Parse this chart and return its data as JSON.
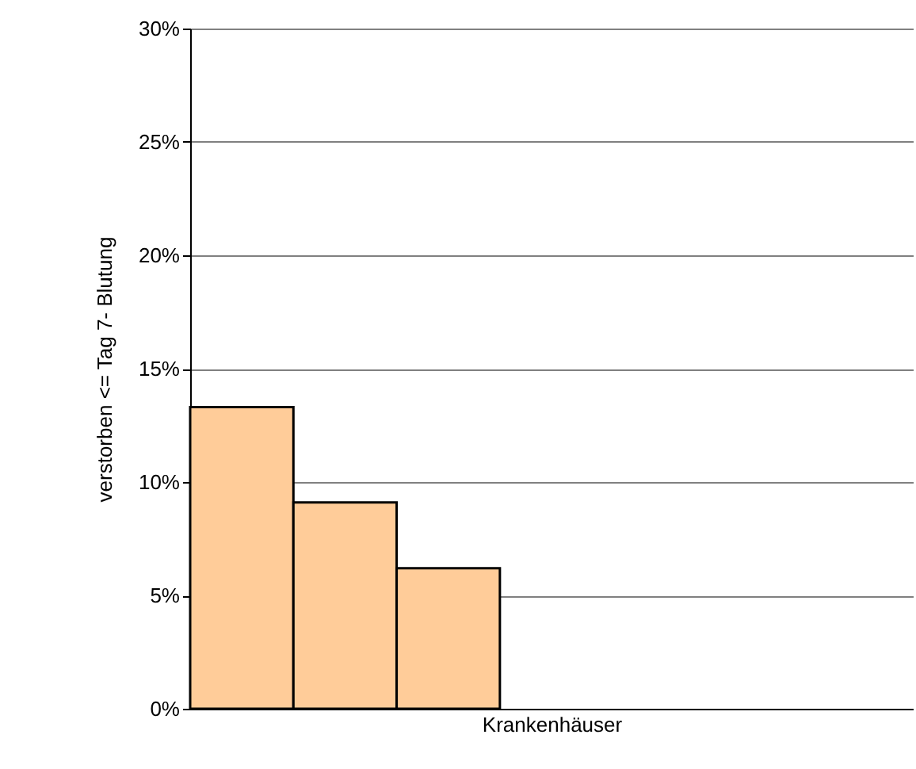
{
  "chart_data": {
    "type": "bar",
    "xlabel": "Krankenhäuser",
    "ylabel": "verstorben <= Tag 7- Blutung",
    "categories": [
      null,
      null,
      null,
      null,
      null,
      null,
      null
    ],
    "values": [
      13.3,
      9.1,
      6.2,
      null,
      null,
      null,
      null
    ],
    "color": "#ffcc99",
    "ylim": [
      0,
      30
    ],
    "yticks": [
      {
        "value": 0,
        "label": "0%"
      },
      {
        "value": 5,
        "label": "5%"
      },
      {
        "value": 10,
        "label": "10%"
      },
      {
        "value": 15,
        "label": "15%"
      },
      {
        "value": 20,
        "label": "20%"
      },
      {
        "value": 25,
        "label": "25%"
      },
      {
        "value": 30,
        "label": "30%"
      }
    ],
    "grid": "y",
    "tick_labels": "y"
  }
}
